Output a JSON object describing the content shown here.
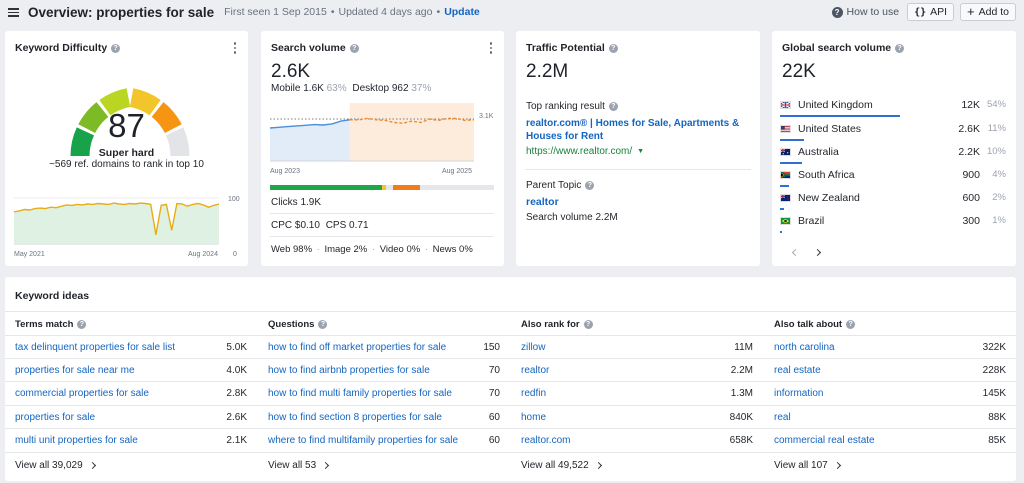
{
  "header": {
    "title": "Overview: properties for sale",
    "first_seen": "First seen 1 Sep 2015",
    "updated": "Updated 4 days ago",
    "dot": "•",
    "update_label": "Update",
    "how_to_use": "How to use",
    "api_label": "API",
    "add_to_label": "Add to"
  },
  "kd": {
    "title": "Keyword Difficulty",
    "value": "87",
    "label": "Super hard",
    "sub": "~569 ref. domains to rank in top 10",
    "y_max": "100",
    "y_min": "0",
    "x_start": "May 2021",
    "x_end": "Aug 2024",
    "trend": [
      70,
      72,
      75,
      74,
      77,
      78,
      77,
      80,
      79,
      82,
      85,
      84,
      86,
      85,
      87,
      86,
      88,
      87,
      86,
      89,
      87,
      86,
      88,
      87,
      89,
      88,
      86,
      20,
      84,
      86,
      30,
      88,
      87,
      82,
      86,
      88,
      85,
      80,
      84,
      87
    ]
  },
  "sv": {
    "title": "Search volume",
    "value": "2.6K",
    "mobile": "Mobile 1.6K",
    "mobile_pct": "63%",
    "desktop": "Desktop 962",
    "desktop_pct": "37%",
    "y_label": "3.1K",
    "x_start": "Aug 2023",
    "x_end": "Aug 2025",
    "clicks": "Clicks 1.9K",
    "cpc": "CPC $0.10",
    "cps": "CPS 0.71",
    "web": "Web 98%",
    "image": "Image 2%",
    "video": "Video 0%",
    "news": "News 0%",
    "sep": "·",
    "bar_green_pct": 50,
    "bar_yellow_pct": 2,
    "bar_orange_pct": 12,
    "history": [
      2.4,
      2.45,
      2.5,
      2.55,
      2.6,
      2.65,
      2.62,
      2.7,
      2.9,
      3.0,
      3.0,
      3.1,
      3.0,
      2.95,
      2.8,
      2.75,
      2.9,
      2.8,
      3.05,
      2.95,
      3.1,
      3.1,
      2.95,
      3.0
    ],
    "forecast_start_index": 9
  },
  "tp": {
    "title": "Traffic Potential",
    "value": "2.2M",
    "top_result_label": "Top ranking result",
    "top_result_title": "realtor.com® | Homes for Sale, Apartments & Houses for Rent",
    "top_result_url": "https://www.realtor.com/",
    "parent_topic_label": "Parent Topic",
    "parent_topic": "realtor",
    "parent_volume": "Search volume 2.2M"
  },
  "gsv": {
    "title": "Global search volume",
    "value": "22K",
    "countries": [
      {
        "name": "United Kingdom",
        "volume": "12K",
        "pct": "54%",
        "share": 54
      },
      {
        "name": "United States",
        "volume": "2.6K",
        "pct": "11%",
        "share": 11
      },
      {
        "name": "Australia",
        "volume": "2.2K",
        "pct": "10%",
        "share": 10
      },
      {
        "name": "South Africa",
        "volume": "900",
        "pct": "4%",
        "share": 4
      },
      {
        "name": "New Zealand",
        "volume": "600",
        "pct": "2%",
        "share": 2
      },
      {
        "name": "Brazil",
        "volume": "300",
        "pct": "1%",
        "share": 1
      }
    ]
  },
  "ki": {
    "title": "Keyword ideas",
    "columns": [
      {
        "head": "Terms match",
        "view_all": "View all 39,029",
        "rows": [
          [
            "tax delinquent properties for sale list",
            "5.0K"
          ],
          [
            "properties for sale near me",
            "4.0K"
          ],
          [
            "commercial properties for sale",
            "2.8K"
          ],
          [
            "properties for sale",
            "2.6K"
          ],
          [
            "multi unit properties for sale",
            "2.1K"
          ]
        ]
      },
      {
        "head": "Questions",
        "view_all": "View all 53",
        "rows": [
          [
            "how to find off market properties for sale",
            "150"
          ],
          [
            "how to find airbnb properties for sale",
            "70"
          ],
          [
            "how to find multi family properties for sale",
            "70"
          ],
          [
            "how to find section 8 properties for sale",
            "60"
          ],
          [
            "where to find multifamily properties for sale",
            "60"
          ]
        ]
      },
      {
        "head": "Also rank for",
        "view_all": "View all 49,522",
        "rows": [
          [
            "zillow",
            "11M"
          ],
          [
            "realtor",
            "2.2M"
          ],
          [
            "redfin",
            "1.3M"
          ],
          [
            "home",
            "840K"
          ],
          [
            "realtor.com",
            "658K"
          ]
        ]
      },
      {
        "head": "Also talk about",
        "view_all": "View all 107",
        "rows": [
          [
            "north carolina",
            "322K"
          ],
          [
            "real estate",
            "228K"
          ],
          [
            "information",
            "145K"
          ],
          [
            "real",
            "88K"
          ],
          [
            "commercial real estate",
            "85K"
          ]
        ]
      }
    ]
  }
}
